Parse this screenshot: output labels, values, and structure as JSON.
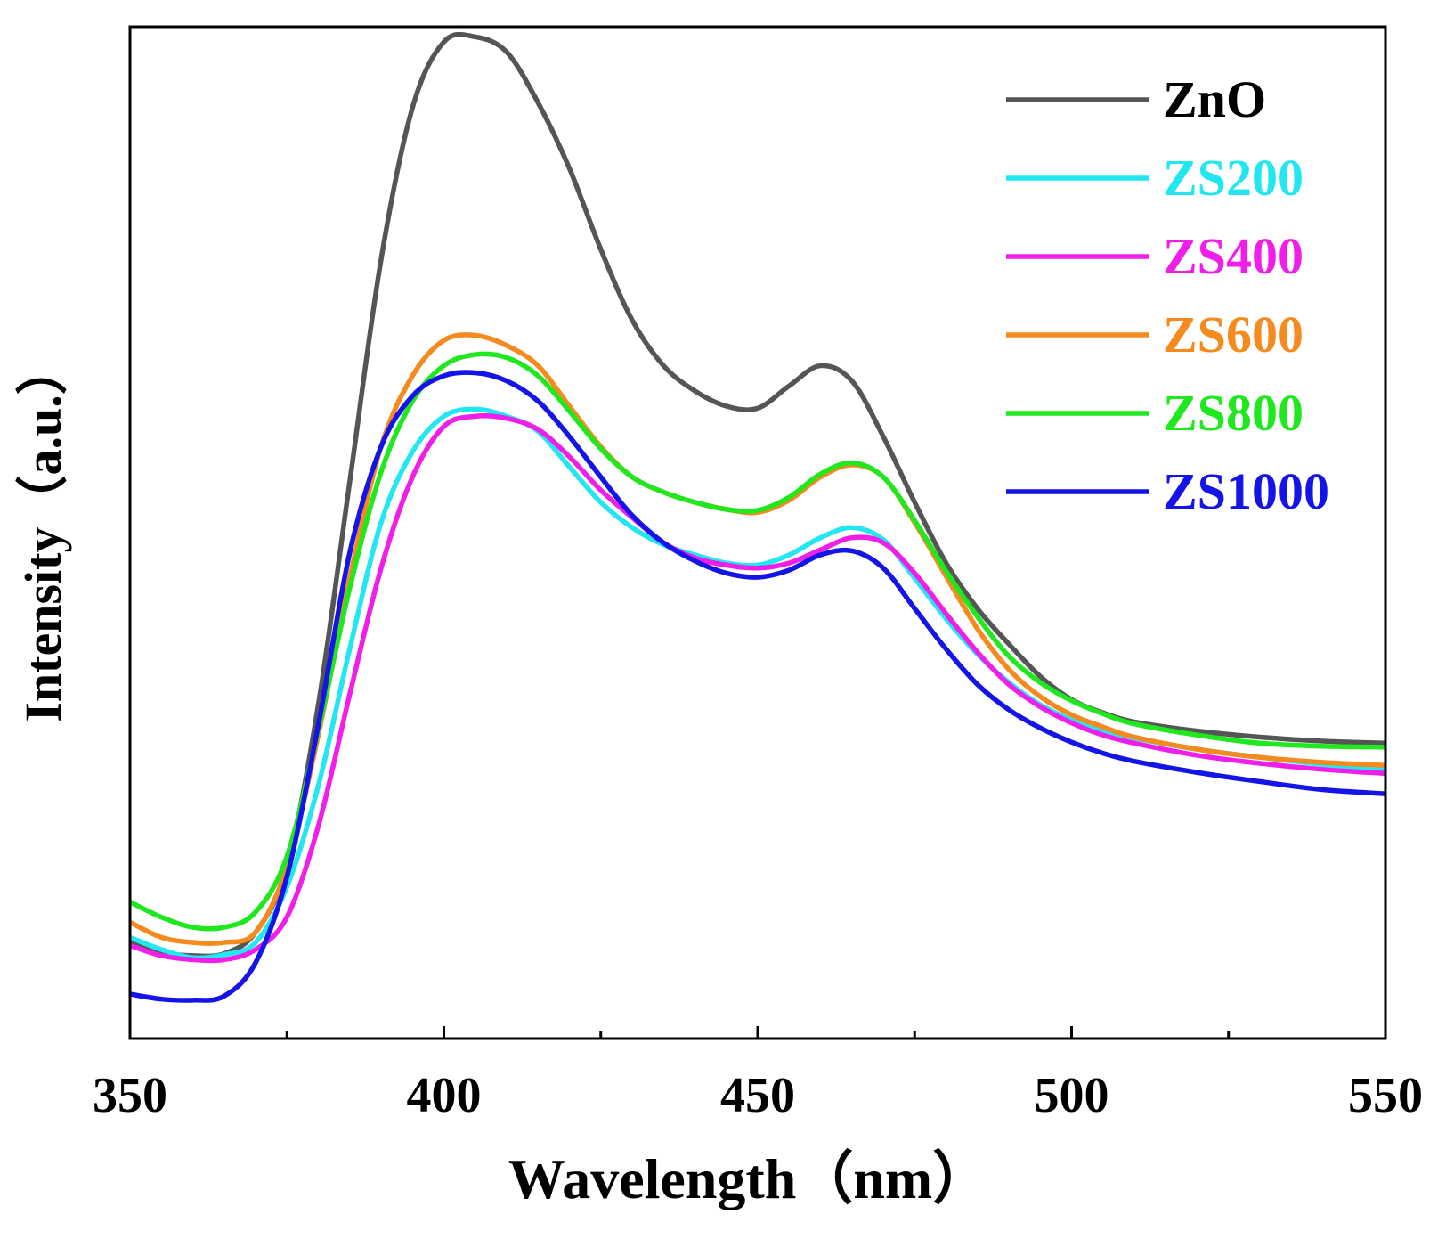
{
  "chart_data": {
    "type": "line",
    "title": "",
    "xlabel": "Wavelength（nm）",
    "ylabel": "Intensity（a.u.）",
    "xlim": [
      350,
      550
    ],
    "ylim": [
      0,
      100
    ],
    "x_ticks": [
      350,
      400,
      450,
      500,
      550
    ],
    "x_tick_labels": [
      "350",
      "400",
      "450",
      "500",
      "550"
    ],
    "x_minor_ticks": [
      375,
      425,
      475,
      525
    ],
    "y_ticks_shown": false,
    "grid": false,
    "legend_position": "top-right",
    "series": [
      {
        "name": "ZnO",
        "color": "#555555",
        "x": [
          350,
          355,
          360,
          365,
          370,
          375,
          380,
          385,
          390,
          395,
          400,
          405,
          410,
          415,
          420,
          425,
          430,
          435,
          440,
          445,
          450,
          455,
          460,
          465,
          470,
          475,
          480,
          485,
          490,
          495,
          500,
          505,
          510,
          520,
          530,
          540,
          550
        ],
        "values": [
          9.5,
          8.5,
          8.2,
          8.4,
          10.5,
          17,
          33,
          55,
          77,
          92,
          98.5,
          99,
          97.5,
          92.5,
          86,
          78,
          71,
          66.5,
          64,
          62.5,
          62.3,
          64.5,
          66.5,
          65,
          59.5,
          53,
          47,
          42.5,
          39,
          35.8,
          33.5,
          32.2,
          31.3,
          30.4,
          29.8,
          29.4,
          29.2
        ]
      },
      {
        "name": "ZS200",
        "color": "#22E6F0",
        "x": [
          350,
          355,
          360,
          365,
          370,
          375,
          380,
          385,
          390,
          395,
          400,
          405,
          410,
          415,
          420,
          425,
          430,
          435,
          440,
          445,
          450,
          455,
          460,
          465,
          470,
          475,
          480,
          485,
          490,
          495,
          500,
          505,
          510,
          520,
          530,
          540,
          550
        ],
        "values": [
          10,
          8.8,
          8,
          8.3,
          9.5,
          15,
          25,
          38.5,
          51,
          58,
          61.5,
          62.2,
          61.5,
          60,
          56.5,
          53,
          50.5,
          48.8,
          47.8,
          47,
          46.8,
          47.8,
          49.5,
          50.5,
          49.3,
          45.5,
          41.5,
          38,
          35.2,
          33,
          31.5,
          30.5,
          29.7,
          28.6,
          27.8,
          27.1,
          26.6
        ]
      },
      {
        "name": "ZS400",
        "color": "#F01EE8",
        "x": [
          350,
          355,
          360,
          365,
          370,
          375,
          380,
          385,
          390,
          395,
          400,
          405,
          410,
          415,
          420,
          425,
          430,
          435,
          440,
          445,
          450,
          455,
          460,
          465,
          470,
          475,
          480,
          485,
          490,
          495,
          500,
          505,
          510,
          520,
          530,
          540,
          550
        ],
        "values": [
          9.2,
          8.2,
          7.8,
          7.8,
          8.8,
          12,
          21,
          34,
          46.5,
          55.5,
          60.5,
          61.5,
          61.3,
          60.2,
          57.5,
          54.2,
          51.5,
          49,
          47.5,
          46.8,
          46.5,
          47,
          48.3,
          49.5,
          49,
          46,
          42,
          38.2,
          35,
          32.8,
          31.2,
          30,
          29.2,
          28,
          27.2,
          26.6,
          26.2
        ]
      },
      {
        "name": "ZS600",
        "color": "#F58A1F",
        "x": [
          350,
          355,
          360,
          365,
          370,
          375,
          380,
          385,
          390,
          395,
          400,
          405,
          410,
          415,
          420,
          425,
          430,
          435,
          440,
          445,
          450,
          455,
          460,
          465,
          470,
          475,
          480,
          485,
          490,
          495,
          500,
          505,
          510,
          520,
          530,
          540,
          550
        ],
        "values": [
          11.5,
          10,
          9.5,
          9.5,
          10.5,
          17,
          30,
          45.5,
          58.5,
          65.5,
          69,
          69.5,
          68.5,
          66.5,
          62.5,
          58.5,
          55.5,
          54,
          53,
          52.3,
          52,
          53.2,
          55.5,
          56.7,
          55.5,
          51,
          45.7,
          40.5,
          36.5,
          33.8,
          32,
          30.8,
          29.8,
          28.6,
          27.8,
          27.3,
          27
        ]
      },
      {
        "name": "ZS800",
        "color": "#1FE81F",
        "x": [
          350,
          355,
          360,
          365,
          370,
          375,
          380,
          385,
          390,
          395,
          400,
          405,
          410,
          415,
          420,
          425,
          430,
          435,
          440,
          445,
          450,
          455,
          460,
          465,
          470,
          475,
          480,
          485,
          490,
          495,
          500,
          505,
          510,
          520,
          530,
          540,
          550
        ],
        "values": [
          13.5,
          12,
          11,
          11,
          12.5,
          18,
          30.5,
          44.5,
          56,
          63,
          66.5,
          67.6,
          67.3,
          65.5,
          62,
          58.3,
          55.5,
          54,
          53,
          52.3,
          52.2,
          53.5,
          55.8,
          56.9,
          55.5,
          51.2,
          46.2,
          41.7,
          37.8,
          35.2,
          33.4,
          32.1,
          31.1,
          30,
          29.2,
          28.9,
          28.8
        ]
      },
      {
        "name": "ZS1000",
        "color": "#1414E8",
        "x": [
          350,
          355,
          360,
          365,
          370,
          375,
          380,
          385,
          390,
          395,
          400,
          405,
          410,
          415,
          420,
          425,
          430,
          435,
          440,
          445,
          450,
          455,
          460,
          465,
          470,
          475,
          480,
          485,
          490,
          495,
          500,
          505,
          510,
          520,
          530,
          540,
          550
        ],
        "values": [
          4.4,
          3.9,
          3.8,
          4.2,
          7.5,
          16,
          31,
          48,
          58.5,
          63.5,
          65.5,
          65.8,
          65,
          63,
          59.5,
          55.5,
          51.7,
          49,
          47.2,
          46,
          45.6,
          46.3,
          47.8,
          48.2,
          46.5,
          42.5,
          38.5,
          35,
          32.5,
          30.7,
          29.3,
          28.2,
          27.4,
          26.3,
          25.4,
          24.6,
          24.2
        ]
      }
    ]
  }
}
